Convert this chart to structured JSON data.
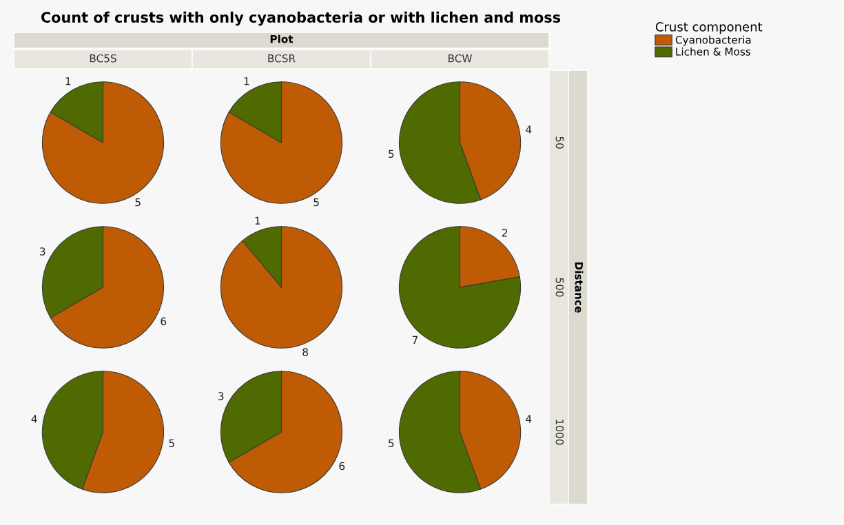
{
  "chart_data": [
    {
      "type": "pie",
      "title": "Count of crusts with only cyanobacteria or with lichen and moss",
      "annotations": [
        "Plot",
        "Distance"
      ],
      "legend_title": "Crust component",
      "legend": "top right",
      "subtitle": "BC5S",
      "categories": [
        "Cyanobacteria",
        "Lichen & Moss"
      ],
      "values": [
        5,
        1
      ],
      "colors": [
        "#bf5b04",
        "#4f6a00"
      ],
      "data_labels": true
    },
    {
      "type": "pie",
      "subtitle": "BCSR",
      "categories": [
        null,
        null
      ],
      "values": [
        5,
        1
      ],
      "colors": [
        "#bf5b04",
        "#4f6a00"
      ],
      "data_labels": true
    },
    {
      "type": "pie",
      "subtitle": "BCW",
      "y2label": "50",
      "categories": [
        null,
        null
      ],
      "values": [
        4,
        5
      ],
      "colors": [
        "#bf5b04",
        "#4f6a00"
      ],
      "data_labels": true
    },
    {
      "type": "pie",
      "categories": [
        null,
        null
      ],
      "values": [
        6,
        3
      ],
      "colors": [
        "#bf5b04",
        "#4f6a00"
      ],
      "data_labels": true
    },
    {
      "type": "pie",
      "categories": [
        null,
        null
      ],
      "values": [
        8,
        1
      ],
      "colors": [
        "#bf5b04",
        "#4f6a00"
      ],
      "data_labels": true
    },
    {
      "type": "pie",
      "y2label": "500",
      "categories": [
        null,
        null
      ],
      "values": [
        2,
        7
      ],
      "colors": [
        "#bf5b04",
        "#4f6a00"
      ],
      "data_labels": true
    },
    {
      "type": "pie",
      "categories": [
        null,
        null
      ],
      "values": [
        5,
        4
      ],
      "colors": [
        "#bf5b04",
        "#4f6a00"
      ],
      "data_labels": true
    },
    {
      "type": "pie",
      "categories": [
        null,
        null
      ],
      "values": [
        6,
        3
      ],
      "colors": [
        "#bf5b04",
        "#4f6a00"
      ],
      "data_labels": true
    },
    {
      "type": "pie",
      "y2label": "1000",
      "categories": [
        null,
        null
      ],
      "values": [
        4,
        5
      ],
      "colors": [
        "#bf5b04",
        "#4f6a00"
      ],
      "data_labels": true
    }
  ]
}
